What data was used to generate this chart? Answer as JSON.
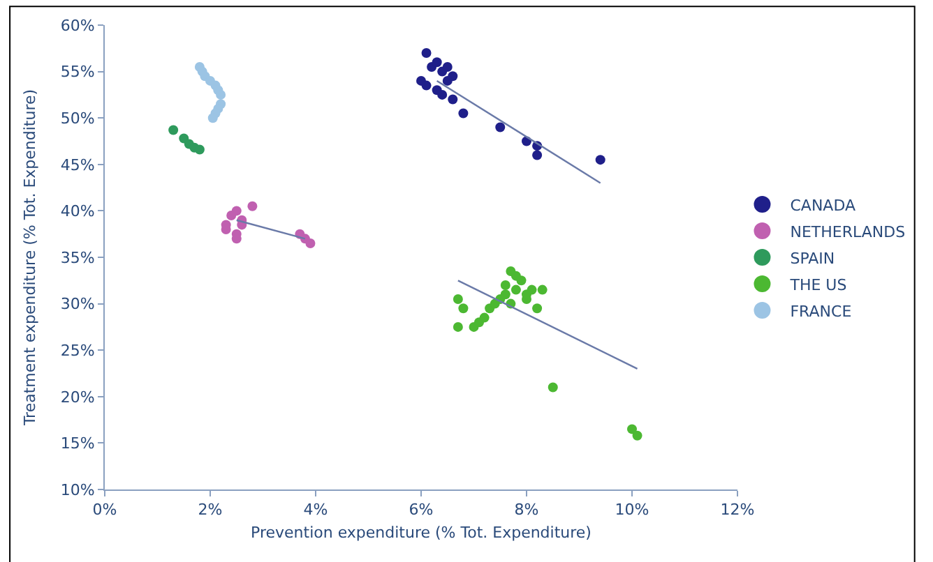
{
  "chart_data": {
    "type": "scatter",
    "xlabel": "Prevention expenditure (% Tot. Expenditure)",
    "ylabel": "Treatment expenditure (% Tot. Expenditure)",
    "xlim": [
      0,
      12
    ],
    "xticks": [
      {
        "value": 0,
        "label": "0%"
      },
      {
        "value": 2,
        "label": "2%"
      },
      {
        "value": 4,
        "label": "4%"
      },
      {
        "value": 6,
        "label": "6%"
      },
      {
        "value": 8,
        "label": "8%"
      },
      {
        "value": 10,
        "label": "10%"
      },
      {
        "value": 12,
        "label": "12%"
      }
    ],
    "ylim": [
      10,
      60
    ],
    "yticks": [
      {
        "value": 10,
        "label": "10%"
      },
      {
        "value": 15,
        "label": "15%"
      },
      {
        "value": 20,
        "label": "20%"
      },
      {
        "value": 25,
        "label": "25%"
      },
      {
        "value": 30,
        "label": "30%"
      },
      {
        "value": 35,
        "label": "35%"
      },
      {
        "value": 40,
        "label": "40%"
      },
      {
        "value": 45,
        "label": "45%"
      },
      {
        "value": 50,
        "label": "50%"
      },
      {
        "value": 55,
        "label": "55%"
      },
      {
        "value": 60,
        "label": "60%"
      }
    ],
    "legend": "right",
    "marker": "circle",
    "series": [
      {
        "name": "CANADA",
        "color": "#1f1f8a",
        "x": [
          6.1,
          6.2,
          6.3,
          6.4,
          6.5,
          6.6,
          6.0,
          6.3,
          6.5,
          6.1,
          6.4,
          6.6,
          6.8,
          7.5,
          8.0,
          8.2,
          8.2,
          9.4
        ],
        "values": [
          57,
          55.5,
          56,
          55,
          55.5,
          54.5,
          54,
          53,
          54,
          53.5,
          52.5,
          52,
          50.5,
          49,
          47.5,
          47,
          46,
          45.5
        ]
      },
      {
        "name": "NETHERLANDS",
        "color": "#c060b0",
        "x": [
          2.3,
          2.4,
          2.5,
          2.6,
          2.8,
          2.3,
          2.5,
          2.6,
          2.5,
          3.7,
          3.8,
          3.9
        ],
        "values": [
          38,
          39.5,
          40,
          39,
          40.5,
          38.5,
          37.5,
          38.5,
          37,
          37.5,
          37,
          36.5
        ]
      },
      {
        "name": "SPAIN",
        "color": "#2e9a5c",
        "x": [
          1.3,
          1.5,
          1.6,
          1.7,
          1.8
        ],
        "values": [
          48.7,
          47.8,
          47.2,
          46.8,
          46.6
        ]
      },
      {
        "name": "THE US",
        "color": "#4cb832",
        "x": [
          6.7,
          6.7,
          6.8,
          7.0,
          7.1,
          7.2,
          7.3,
          7.4,
          7.5,
          7.6,
          7.7,
          7.7,
          7.8,
          7.9,
          8.0,
          8.1,
          8.2,
          8.3,
          7.8,
          7.6,
          8.0,
          8.5,
          10.0,
          10.1
        ],
        "values": [
          30.5,
          27.5,
          29.5,
          27.5,
          28,
          28.5,
          29.5,
          30,
          30.5,
          31,
          33.5,
          30,
          31.5,
          32.5,
          30.5,
          31.5,
          29.5,
          31.5,
          33,
          32,
          31,
          21,
          16.5,
          15.8
        ]
      },
      {
        "name": "FRANCE",
        "color": "#9cc4e4",
        "x": [
          1.8,
          1.85,
          1.9,
          2.0,
          2.1,
          2.15,
          2.2,
          2.2,
          2.15,
          2.1,
          2.05
        ],
        "values": [
          55.5,
          55,
          54.5,
          54,
          53.5,
          53,
          52.5,
          51.5,
          51,
          50.5,
          50
        ]
      },
      {
        "type": "line",
        "marker": "none",
        "color": "#6a7aa8",
        "x": [
          6.3,
          9.4
        ],
        "values": [
          54,
          43
        ]
      },
      {
        "type": "line",
        "marker": "none",
        "color": "#6a7aa8",
        "x": [
          2.5,
          3.8
        ],
        "values": [
          39,
          37
        ]
      },
      {
        "type": "line",
        "marker": "none",
        "color": "#6a7aa8",
        "x": [
          6.7,
          10.1
        ],
        "values": [
          32.5,
          23
        ]
      }
    ]
  }
}
